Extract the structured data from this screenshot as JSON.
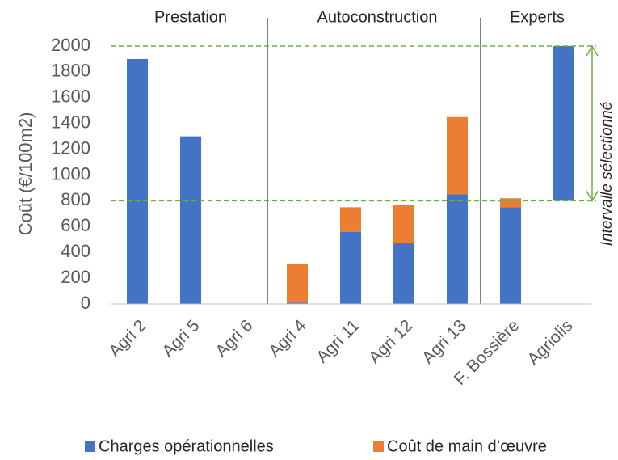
{
  "chart_data": {
    "type": "stacked_bar",
    "y_label": "Coût (€/100m2)",
    "categories": [
      "Agri 2",
      "Agri 5",
      "Agri 6",
      "Agri 4",
      "Agri 11",
      "Agri 12",
      "Agri 13",
      "F. Bossière",
      "Agriolis"
    ],
    "groups": [
      "Prestation",
      "Autoconstruction",
      "Experts"
    ],
    "series": [
      {
        "name": "Charges opérationnelles",
        "color": "#4472c4",
        "values": [
          1900,
          1300,
          0,
          10,
          560,
          470,
          850,
          750,
          [
            800,
            2000
          ]
        ]
      },
      {
        "name": "Coût de main d’œuvre",
        "color": "#ed7d31",
        "values": [
          null,
          null,
          null,
          300,
          190,
          300,
          600,
          70,
          null
        ]
      }
    ],
    "ylim": [
      0,
      2000
    ],
    "yticks": [
      0,
      200,
      400,
      600,
      800,
      1000,
      1200,
      1400,
      1600,
      1800,
      2000
    ],
    "reference_lines": [
      800,
      2000
    ],
    "reference_color": "#70ad47",
    "annotation": "Intervalle sélectionné",
    "legend": "bottom"
  }
}
